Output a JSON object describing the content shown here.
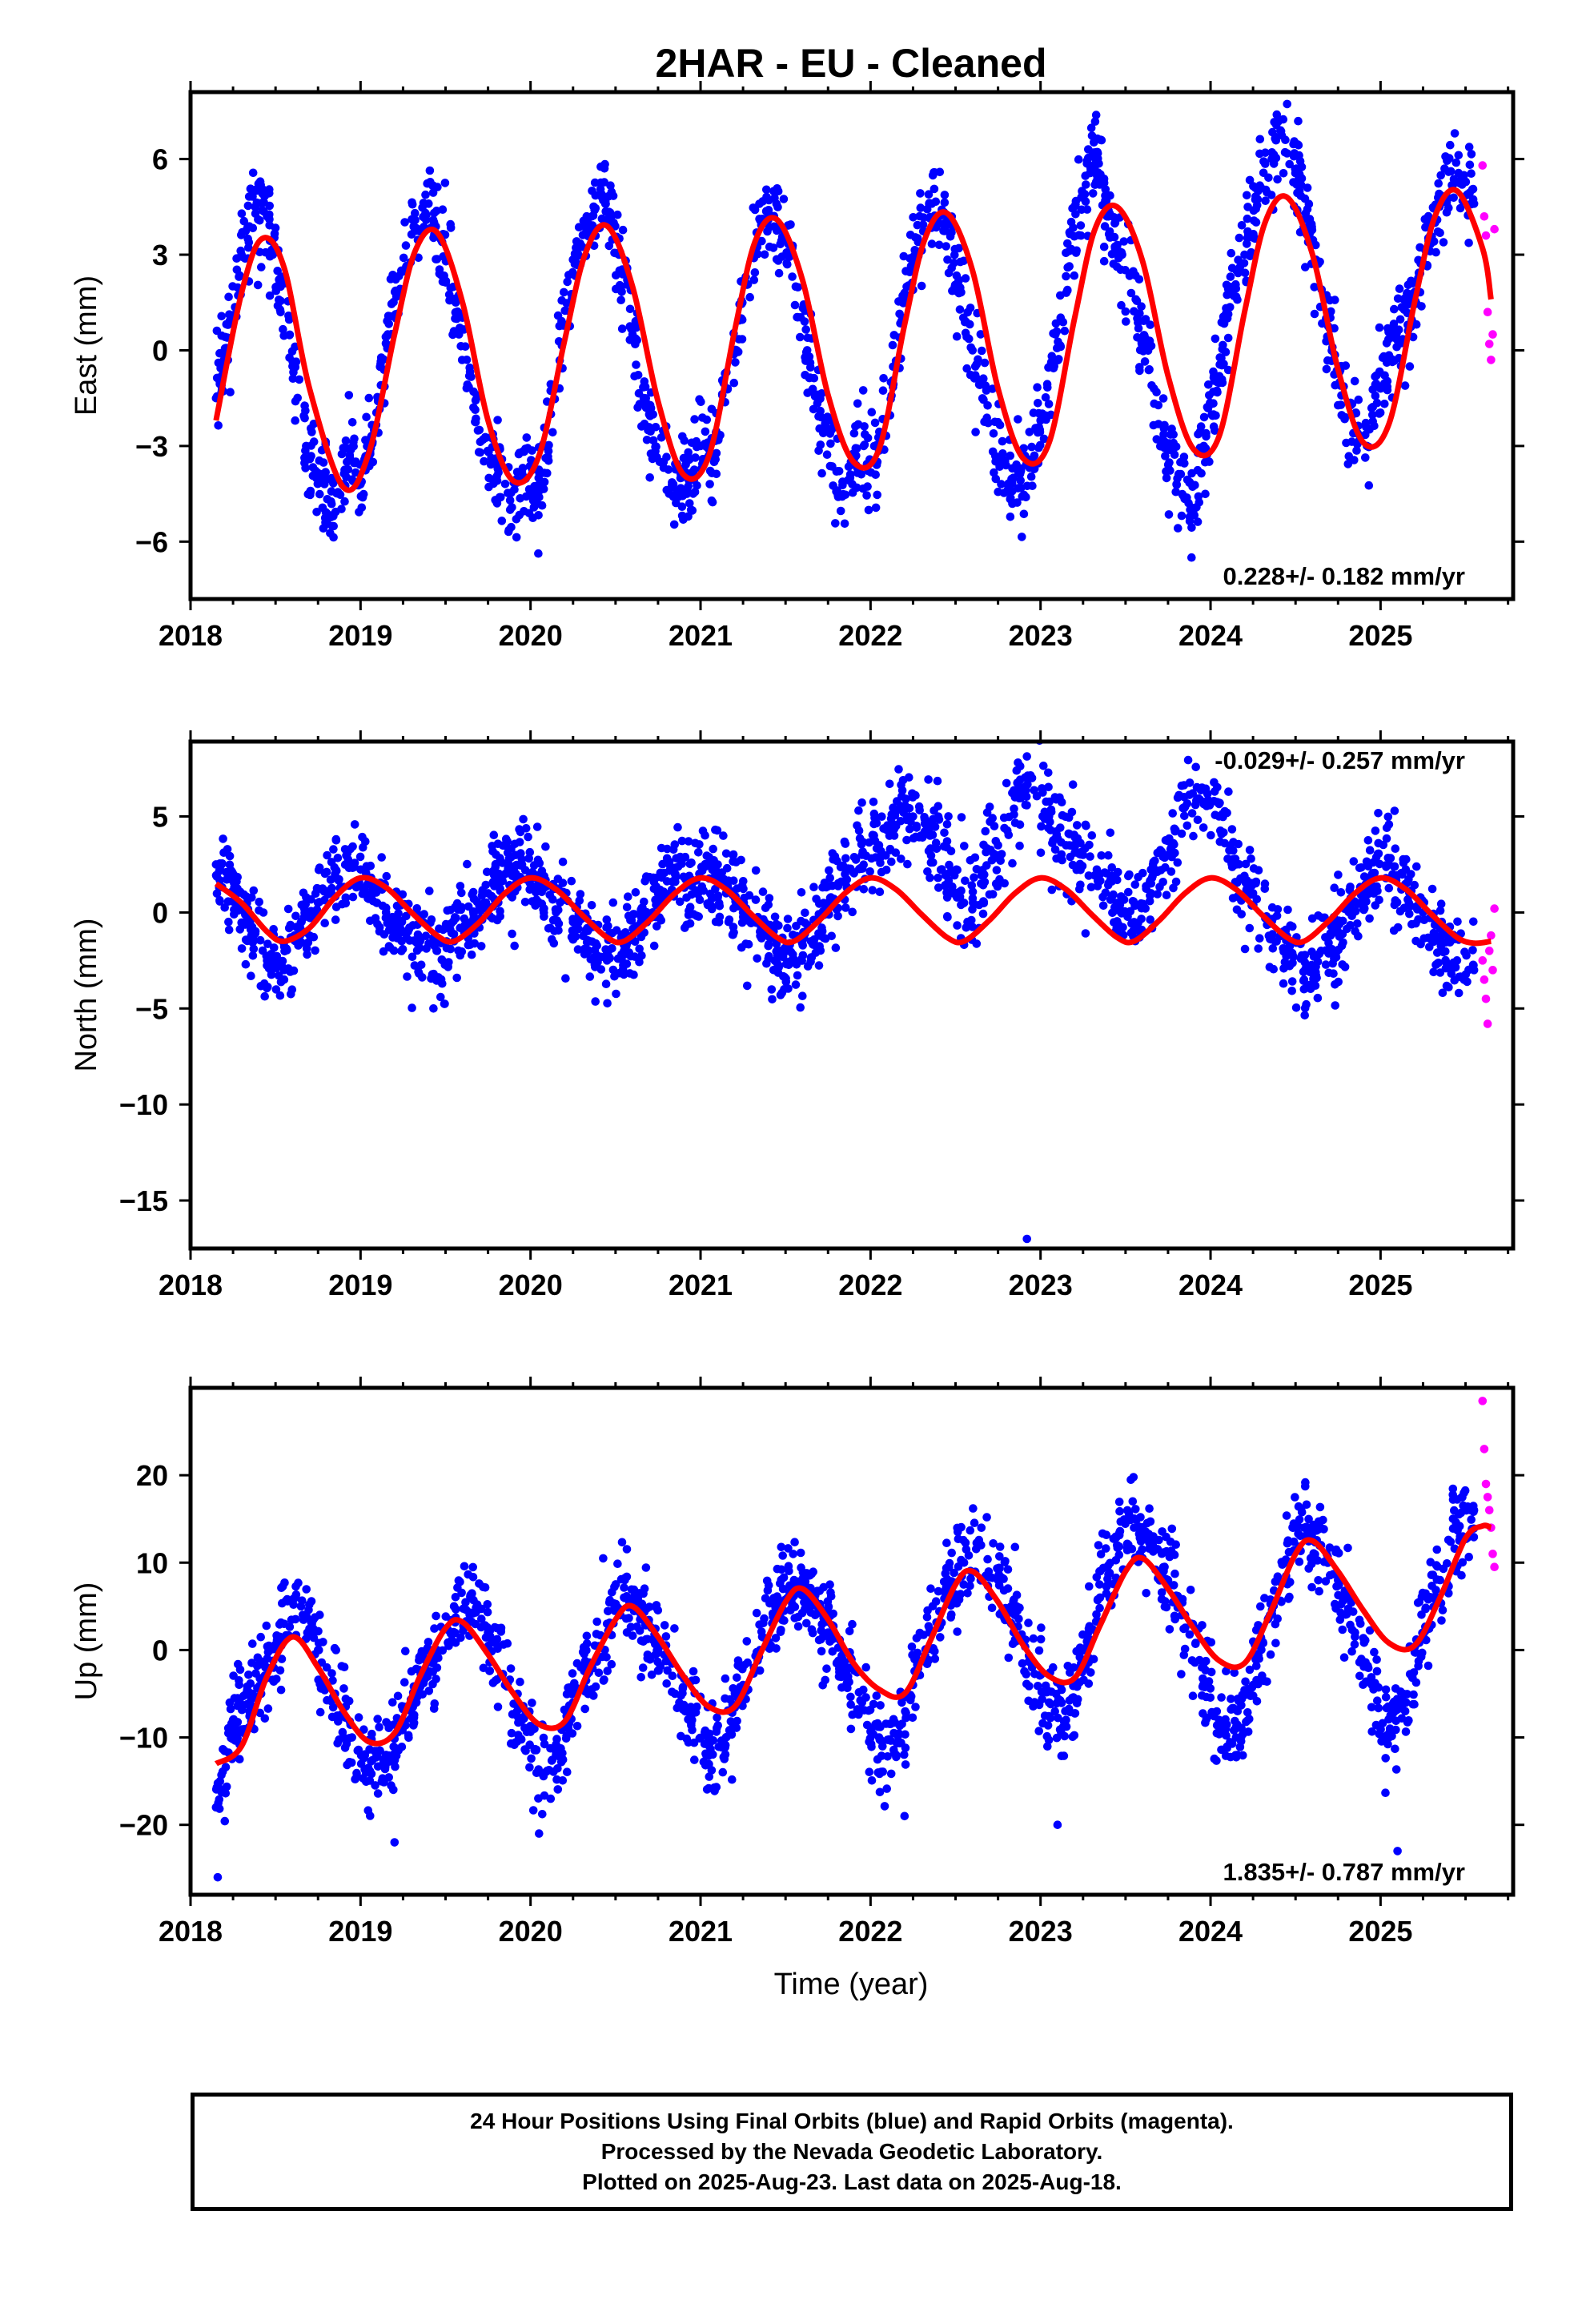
{
  "title": "2HAR  - EU - Cleaned",
  "xlabel": "Time (year)",
  "colors": {
    "final": "#0000ff",
    "rapid": "#ff00ff",
    "fit": "#ff0000",
    "axis": "#000000"
  },
  "caption": [
    "24 Hour Positions Using Final Orbits (blue) and Rapid Orbits (magenta).",
    "Processed by the Nevada Geodetic Laboratory.",
    "Plotted on 2025-Aug-23. Last data on 2025-Aug-18."
  ],
  "chart_data": [
    {
      "type": "scatter",
      "ylabel": "East (mm)",
      "rate_label": "0.228+/- 0.182 mm/yr",
      "rate_position": "bottom-right",
      "xlim": [
        2018,
        2025.78
      ],
      "ylim": [
        -7.8,
        8.1
      ],
      "xticks": [
        2018,
        2019,
        2020,
        2021,
        2022,
        2023,
        2024,
        2025
      ],
      "yticks": [
        -6,
        -3,
        0,
        3,
        6
      ],
      "series": [
        {
          "kind": "final-orbits-points",
          "x": [
            2018.15,
            2018.22,
            2018.3,
            2018.38,
            2018.45,
            2018.53,
            2018.6,
            2018.68,
            2018.76,
            2018.84,
            2018.92,
            2019.0,
            2019.08,
            2019.16,
            2019.24,
            2019.32,
            2019.4,
            2019.48,
            2019.56,
            2019.64,
            2019.72,
            2019.8,
            2019.88,
            2019.96,
            2020.04,
            2020.12,
            2020.2,
            2020.28,
            2020.36,
            2020.44,
            2020.52,
            2020.6,
            2020.68,
            2020.76,
            2020.84,
            2020.92,
            2021.0,
            2021.08,
            2021.16,
            2021.24,
            2021.32,
            2021.4,
            2021.48,
            2021.56,
            2021.64,
            2021.72,
            2021.8,
            2021.88,
            2021.96,
            2022.04,
            2022.12,
            2022.2,
            2022.28,
            2022.36,
            2022.44,
            2022.52,
            2022.6,
            2022.68,
            2022.76,
            2022.84,
            2022.92,
            2023.0,
            2023.08,
            2023.16,
            2023.24,
            2023.32,
            2023.4,
            2023.48,
            2023.56,
            2023.64,
            2023.72,
            2023.8,
            2023.88,
            2023.96,
            2024.04,
            2024.12,
            2024.2,
            2024.28,
            2024.36,
            2024.44,
            2024.52,
            2024.6,
            2024.68,
            2024.76,
            2024.84,
            2024.92,
            2025.0,
            2025.08,
            2025.16,
            2025.24,
            2025.32,
            2025.4,
            2025.48,
            2025.55
          ],
          "y": [
            -1.5,
            0.8,
            3.0,
            4.5,
            4.2,
            2.0,
            -0.5,
            -3.0,
            -4.0,
            -5.2,
            -3.5,
            -4.2,
            -2.5,
            0.5,
            2.5,
            3.8,
            4.6,
            3.4,
            1.5,
            -0.8,
            -2.8,
            -4.0,
            -5.0,
            -4.0,
            -4.8,
            -2.0,
            0.8,
            3.0,
            4.2,
            4.6,
            3.0,
            0.5,
            -1.8,
            -3.5,
            -4.2,
            -4.5,
            -3.0,
            -3.5,
            -1.2,
            1.0,
            3.2,
            4.4,
            3.8,
            2.0,
            -0.2,
            -2.5,
            -3.8,
            -4.0,
            -3.0,
            -3.5,
            -1.0,
            1.8,
            3.4,
            4.6,
            4.0,
            2.2,
            0.0,
            -2.2,
            -3.4,
            -4.0,
            -3.6,
            -2.2,
            -0.5,
            2.6,
            4.8,
            6.2,
            4.2,
            3.0,
            1.6,
            -0.6,
            -2.8,
            -4.2,
            -5.0,
            -3.0,
            -1.0,
            1.8,
            3.0,
            5.0,
            6.0,
            6.6,
            5.4,
            3.4,
            1.0,
            -1.0,
            -2.6,
            -3.0,
            -1.2,
            0.4,
            0.8,
            2.8,
            4.0,
            5.6,
            5.2,
            4.6
          ]
        },
        {
          "kind": "rapid-orbits-points",
          "x": [
            2025.6,
            2025.61,
            2025.62,
            2025.63,
            2025.64,
            2025.65,
            2025.66,
            2025.67
          ],
          "y": [
            5.8,
            4.2,
            3.6,
            1.2,
            0.2,
            -0.3,
            0.5,
            3.8
          ]
        },
        {
          "kind": "model-fit",
          "x": [
            2018.15,
            2018.3,
            2018.42,
            2018.55,
            2018.7,
            2018.9,
            2019.05,
            2019.2,
            2019.32,
            2019.45,
            2019.6,
            2019.75,
            2019.9,
            2020.05,
            2020.2,
            2020.32,
            2020.45,
            2020.6,
            2020.75,
            2020.9,
            2021.05,
            2021.2,
            2021.32,
            2021.45,
            2021.6,
            2021.75,
            2021.9,
            2022.05,
            2022.2,
            2022.32,
            2022.45,
            2022.6,
            2022.75,
            2022.9,
            2023.05,
            2023.2,
            2023.32,
            2023.45,
            2023.6,
            2023.75,
            2023.9,
            2024.05,
            2024.2,
            2024.32,
            2024.45,
            2024.6,
            2024.75,
            2024.9,
            2025.05,
            2025.2,
            2025.32,
            2025.45,
            2025.6,
            2025.65
          ],
          "y": [
            -2.2,
            1.8,
            3.5,
            2.6,
            -1.2,
            -4.3,
            -3.2,
            0.5,
            3.1,
            3.7,
            1.5,
            -2.2,
            -4.1,
            -3.3,
            0.3,
            3.0,
            3.9,
            2.0,
            -1.6,
            -3.9,
            -3.3,
            0.6,
            3.4,
            4.1,
            2.2,
            -1.4,
            -3.5,
            -3.1,
            0.8,
            3.5,
            4.3,
            2.5,
            -1.2,
            -3.4,
            -2.9,
            1.0,
            3.8,
            4.5,
            2.8,
            -0.8,
            -3.1,
            -2.7,
            1.2,
            4.0,
            4.8,
            3.0,
            -0.6,
            -2.9,
            -2.3,
            1.5,
            4.2,
            5.0,
            3.2,
            1.6
          ]
        }
      ]
    },
    {
      "type": "scatter",
      "ylabel": "North (mm)",
      "rate_label": "-0.029+/- 0.257 mm/yr",
      "rate_position": "top-right",
      "xlim": [
        2018,
        2025.78
      ],
      "ylim": [
        -17.5,
        8.9
      ],
      "xticks": [
        2018,
        2019,
        2020,
        2021,
        2022,
        2023,
        2024,
        2025
      ],
      "yticks": [
        -15,
        -10,
        -5,
        0,
        5
      ],
      "series": [
        {
          "kind": "final-orbits-points",
          "x": [
            2018.15,
            2018.25,
            2018.35,
            2018.45,
            2018.55,
            2018.65,
            2018.75,
            2018.85,
            2018.95,
            2019.05,
            2019.15,
            2019.25,
            2019.35,
            2019.45,
            2019.55,
            2019.65,
            2019.75,
            2019.85,
            2019.95,
            2020.05,
            2020.15,
            2020.25,
            2020.35,
            2020.45,
            2020.55,
            2020.65,
            2020.75,
            2020.85,
            2020.95,
            2021.05,
            2021.15,
            2021.25,
            2021.35,
            2021.45,
            2021.55,
            2021.65,
            2021.75,
            2021.85,
            2021.95,
            2022.05,
            2022.15,
            2022.25,
            2022.35,
            2022.45,
            2022.55,
            2022.65,
            2022.75,
            2022.85,
            2022.95,
            2023.05,
            2023.15,
            2023.25,
            2023.35,
            2023.45,
            2023.55,
            2023.65,
            2023.75,
            2023.85,
            2023.95,
            2024.05,
            2024.15,
            2024.25,
            2024.35,
            2024.45,
            2024.55,
            2024.65,
            2024.75,
            2024.85,
            2024.95,
            2025.05,
            2025.15,
            2025.25,
            2025.35,
            2025.45,
            2025.55
          ],
          "y": [
            2.5,
            1.0,
            -0.5,
            -2.5,
            -3.0,
            -1.0,
            0.5,
            2.0,
            2.5,
            1.5,
            0.0,
            -1.0,
            -1.5,
            -2.0,
            -1.5,
            -0.5,
            1.0,
            2.0,
            2.5,
            1.5,
            0.0,
            -0.5,
            -1.5,
            -2.5,
            -2.0,
            -0.5,
            1.0,
            2.0,
            1.5,
            2.5,
            1.0,
            0.0,
            -1.0,
            -2.0,
            -2.5,
            -1.5,
            0.5,
            2.0,
            3.0,
            3.5,
            4.5,
            5.0,
            4.0,
            2.0,
            0.5,
            1.5,
            3.5,
            6.0,
            7.0,
            5.0,
            3.5,
            3.0,
            2.0,
            0.5,
            -0.5,
            1.0,
            3.0,
            5.5,
            6.5,
            5.0,
            2.5,
            1.0,
            -0.5,
            -2.0,
            -3.5,
            -2.0,
            -1.0,
            0.5,
            2.0,
            2.5,
            1.5,
            0.0,
            -1.5,
            -2.5,
            -3.0
          ]
        },
        {
          "kind": "outlier",
          "x": [
            2022.92
          ],
          "y": [
            -17.0
          ]
        },
        {
          "kind": "rapid-orbits-points",
          "x": [
            2025.6,
            2025.61,
            2025.62,
            2025.63,
            2025.64,
            2025.65,
            2025.66,
            2025.67
          ],
          "y": [
            -2.5,
            -3.5,
            -4.5,
            -5.8,
            -2.0,
            -1.2,
            -3.0,
            0.2
          ]
        },
        {
          "kind": "model-fit",
          "x": [
            2018.15,
            2018.3,
            2018.45,
            2018.55,
            2018.7,
            2018.85,
            2019.0,
            2019.15,
            2019.3,
            2019.45,
            2019.55,
            2019.7,
            2019.85,
            2020.0,
            2020.15,
            2020.3,
            2020.45,
            2020.55,
            2020.7,
            2020.85,
            2021.0,
            2021.15,
            2021.3,
            2021.45,
            2021.55,
            2021.7,
            2021.85,
            2022.0,
            2022.15,
            2022.3,
            2022.45,
            2022.55,
            2022.7,
            2022.85,
            2023.0,
            2023.15,
            2023.3,
            2023.45,
            2023.55,
            2023.7,
            2023.85,
            2024.0,
            2024.15,
            2024.3,
            2024.45,
            2024.55,
            2024.7,
            2024.85,
            2025.0,
            2025.15,
            2025.3,
            2025.45,
            2025.55,
            2025.65
          ],
          "y": [
            1.5,
            0.5,
            -1.0,
            -1.5,
            -0.8,
            0.8,
            1.8,
            1.3,
            0.0,
            -1.2,
            -1.5,
            -0.5,
            1.0,
            1.8,
            1.2,
            -0.1,
            -1.3,
            -1.5,
            -0.4,
            1.0,
            1.8,
            1.2,
            -0.1,
            -1.3,
            -1.5,
            -0.4,
            1.0,
            1.8,
            1.2,
            -0.1,
            -1.3,
            -1.5,
            -0.4,
            1.0,
            1.8,
            1.2,
            -0.1,
            -1.3,
            -1.5,
            -0.4,
            1.0,
            1.8,
            1.2,
            -0.1,
            -1.3,
            -1.5,
            -0.4,
            1.0,
            1.8,
            1.2,
            -0.1,
            -1.3,
            -1.6,
            -1.5
          ]
        }
      ]
    },
    {
      "type": "scatter",
      "ylabel": "Up (mm)",
      "rate_label": "1.835+/- 0.787 mm/yr",
      "rate_position": "bottom-right",
      "xlim": [
        2018,
        2025.78
      ],
      "ylim": [
        -28,
        30
      ],
      "xticks": [
        2018,
        2019,
        2020,
        2021,
        2022,
        2023,
        2024,
        2025
      ],
      "yticks": [
        -20,
        -10,
        0,
        10,
        20
      ],
      "series": [
        {
          "kind": "final-orbits-points",
          "x": [
            2018.15,
            2018.25,
            2018.35,
            2018.45,
            2018.55,
            2018.65,
            2018.75,
            2018.85,
            2018.95,
            2019.05,
            2019.15,
            2019.25,
            2019.35,
            2019.45,
            2019.55,
            2019.65,
            2019.75,
            2019.85,
            2019.95,
            2020.05,
            2020.15,
            2020.25,
            2020.35,
            2020.45,
            2020.55,
            2020.65,
            2020.75,
            2020.85,
            2020.95,
            2021.05,
            2021.15,
            2021.25,
            2021.35,
            2021.45,
            2021.55,
            2021.65,
            2021.75,
            2021.85,
            2021.95,
            2022.05,
            2022.15,
            2022.25,
            2022.35,
            2022.45,
            2022.55,
            2022.65,
            2022.75,
            2022.85,
            2022.95,
            2023.05,
            2023.15,
            2023.25,
            2023.35,
            2023.45,
            2023.55,
            2023.65,
            2023.75,
            2023.85,
            2023.95,
            2024.05,
            2024.15,
            2024.25,
            2024.35,
            2024.45,
            2024.55,
            2024.65,
            2024.75,
            2024.85,
            2024.95,
            2025.05,
            2025.15,
            2025.25,
            2025.35,
            2025.45,
            2025.55
          ],
          "y": [
            -18,
            -8,
            -6,
            -2,
            3,
            5,
            0,
            -5,
            -10,
            -14,
            -12,
            -8,
            -4,
            0,
            5,
            6,
            2,
            -4,
            -8,
            -14,
            -12,
            -6,
            -2,
            3,
            6,
            4,
            0,
            -5,
            -8,
            -12,
            -10,
            -4,
            0,
            5,
            8,
            6,
            2,
            -2,
            -6,
            -10,
            -12,
            -4,
            2,
            6,
            10,
            12,
            8,
            4,
            -2,
            -6,
            -8,
            -2,
            6,
            12,
            14,
            12,
            8,
            4,
            -2,
            -8,
            -10,
            -4,
            4,
            10,
            14,
            12,
            8,
            2,
            -4,
            -10,
            -6,
            2,
            8,
            14,
            16
          ]
        },
        {
          "kind": "outlier",
          "x": [
            2018.16,
            2019.2,
            2020.05,
            2022.2,
            2023.1,
            2025.1
          ],
          "y": [
            -26,
            -22,
            -21,
            -19,
            -20,
            -23
          ]
        },
        {
          "kind": "rapid-orbits-points",
          "x": [
            2025.6,
            2025.61,
            2025.62,
            2025.63,
            2025.64,
            2025.65,
            2025.66,
            2025.67
          ],
          "y": [
            28.5,
            23.0,
            19.0,
            17.5,
            16.0,
            14.0,
            11.0,
            9.5
          ]
        },
        {
          "kind": "model-fit",
          "x": [
            2018.15,
            2018.3,
            2018.45,
            2018.6,
            2018.75,
            2018.9,
            2019.05,
            2019.2,
            2019.35,
            2019.5,
            2019.6,
            2019.75,
            2019.9,
            2020.05,
            2020.2,
            2020.35,
            2020.5,
            2020.6,
            2020.75,
            2020.9,
            2021.05,
            2021.2,
            2021.35,
            2021.5,
            2021.6,
            2021.75,
            2021.9,
            2022.05,
            2022.2,
            2022.35,
            2022.5,
            2022.6,
            2022.75,
            2022.9,
            2023.05,
            2023.2,
            2023.35,
            2023.5,
            2023.6,
            2023.75,
            2023.9,
            2024.05,
            2024.2,
            2024.35,
            2024.5,
            2024.6,
            2024.75,
            2024.9,
            2025.05,
            2025.2,
            2025.35,
            2025.5,
            2025.6,
            2025.65
          ],
          "y": [
            -13,
            -11,
            -3,
            1.5,
            -2,
            -7,
            -10.5,
            -9.5,
            -3,
            2.5,
            3.2,
            -0.5,
            -5,
            -8.5,
            -8.2,
            -2,
            3.5,
            5,
            1.5,
            -3,
            -6.5,
            -6.5,
            -0.5,
            5.5,
            7,
            3.5,
            -1.5,
            -4.5,
            -5,
            1,
            7.5,
            9,
            5.5,
            0.5,
            -3,
            -3.2,
            2.8,
            9,
            10.5,
            7,
            2.5,
            -1.2,
            -1.5,
            4.2,
            11,
            12.5,
            9,
            4.5,
            0.8,
            0.5,
            6,
            12.8,
            14.2,
            14
          ]
        }
      ]
    }
  ]
}
